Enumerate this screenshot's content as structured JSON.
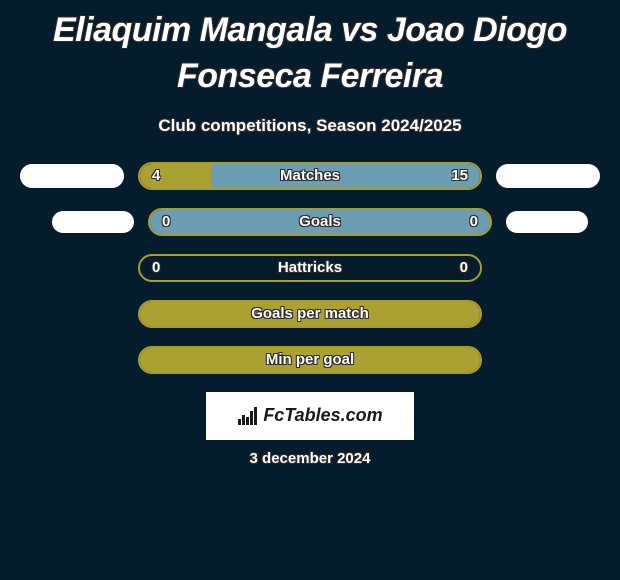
{
  "title": "Eliaquim Mangala vs Joao Diogo Fonseca Ferreira",
  "subtitle": "Club competitions, Season 2024/2025",
  "background_color": "#051c2c",
  "accent_color": "#a79c2e",
  "accent_fill": "#aba032",
  "light_fill": "#6d9db3",
  "text_color": "#ffffff",
  "date": "3 december 2024",
  "logo_text": "FcTables.com",
  "stats": [
    {
      "label": "Matches",
      "left_value": "4",
      "right_value": "15",
      "left_pct": 21,
      "right_pct": 79,
      "fill_type": "split",
      "left_color": "#aba032",
      "right_color": "#6d9db3",
      "border_color": "#a79c2e",
      "show_pill_left": true,
      "show_pill_right": true,
      "pill_left_style": "normal",
      "pill_right_style": "normal"
    },
    {
      "label": "Goals",
      "left_value": "0",
      "right_value": "0",
      "left_pct": 0,
      "right_pct": 0,
      "fill_type": "full",
      "full_color": "#6d9db3",
      "border_color": "#a79c2e",
      "show_pill_left": true,
      "show_pill_right": true,
      "pill_left_style": "small",
      "pill_right_style": "small"
    },
    {
      "label": "Hattricks",
      "left_value": "0",
      "right_value": "0",
      "left_pct": 0,
      "right_pct": 0,
      "fill_type": "none",
      "border_color": "#a79c2e",
      "show_pill_left": false,
      "show_pill_right": false
    },
    {
      "label": "Goals per match",
      "left_value": "",
      "right_value": "",
      "left_pct": 0,
      "right_pct": 0,
      "fill_type": "full",
      "full_color": "#aba032",
      "border_color": "#a79c2e",
      "show_pill_left": false,
      "show_pill_right": false
    },
    {
      "label": "Min per goal",
      "left_value": "",
      "right_value": "",
      "left_pct": 0,
      "right_pct": 0,
      "fill_type": "full",
      "full_color": "#aba032",
      "border_color": "#a79c2e",
      "show_pill_left": false,
      "show_pill_right": false
    }
  ]
}
